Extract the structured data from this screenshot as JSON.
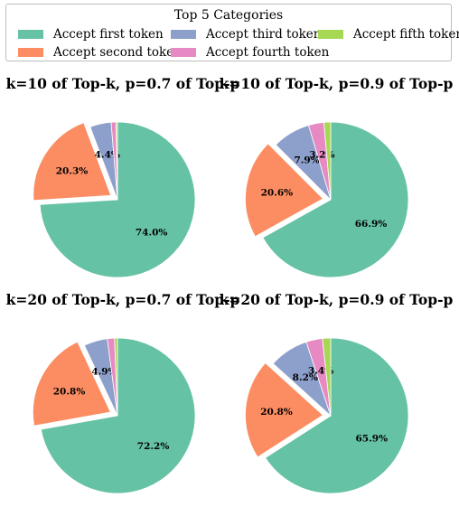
{
  "legend": {
    "title": "Top 5 Categories",
    "items": [
      {
        "label": "Accept first token",
        "color": "#66c2a5"
      },
      {
        "label": "Accept second token",
        "color": "#fc8d62"
      },
      {
        "label": "Accept third token",
        "color": "#8da0cb"
      },
      {
        "label": "Accept fourth token",
        "color": "#e78ac3"
      },
      {
        "label": "Accept fifth token",
        "color": "#a6d854"
      }
    ]
  },
  "chart_data": [
    {
      "type": "pie",
      "title": "k=10 of Top-k, p=0.7 of Top-p",
      "categories": [
        "Accept first token",
        "Accept second token",
        "Accept third token",
        "Accept fourth token",
        "Accept fifth token"
      ],
      "values": [
        74.0,
        20.3,
        4.4,
        1.0,
        0.3
      ],
      "labels": [
        "74.0%",
        "20.3%",
        "4.4%",
        "",
        ""
      ],
      "explode": [
        0,
        0.1,
        0,
        0,
        0
      ],
      "start_angle": 90,
      "direction": "clockwise"
    },
    {
      "type": "pie",
      "title": "k=10 of Top-k, p=0.9 of Top-p",
      "categories": [
        "Accept first token",
        "Accept second token",
        "Accept third token",
        "Accept fourth token",
        "Accept fifth token"
      ],
      "values": [
        66.9,
        20.6,
        7.9,
        3.2,
        1.4
      ],
      "labels": [
        "66.9%",
        "20.6%",
        "7.9%",
        "3.2%",
        ""
      ],
      "explode": [
        0,
        0.1,
        0,
        0,
        0
      ],
      "start_angle": 90,
      "direction": "clockwise"
    },
    {
      "type": "pie",
      "title": "k=20 of Top-k, p=0.7 of Top-p",
      "categories": [
        "Accept first token",
        "Accept second token",
        "Accept third token",
        "Accept fourth token",
        "Accept fifth token"
      ],
      "values": [
        72.2,
        20.8,
        4.9,
        1.5,
        0.6
      ],
      "labels": [
        "72.2%",
        "20.8%",
        "4.9%",
        "",
        ""
      ],
      "explode": [
        0,
        0.1,
        0,
        0,
        0
      ],
      "start_angle": 90,
      "direction": "clockwise"
    },
    {
      "type": "pie",
      "title": "k=20 of Top-k, p=0.9 of Top-p",
      "categories": [
        "Accept first token",
        "Accept second token",
        "Accept third token",
        "Accept fourth token",
        "Accept fifth token"
      ],
      "values": [
        65.9,
        20.8,
        8.2,
        3.4,
        1.7
      ],
      "labels": [
        "65.9%",
        "20.8%",
        "8.2%",
        "3.4%",
        ""
      ],
      "explode": [
        0,
        0.1,
        0,
        0,
        0
      ],
      "start_angle": 90,
      "direction": "clockwise"
    }
  ]
}
